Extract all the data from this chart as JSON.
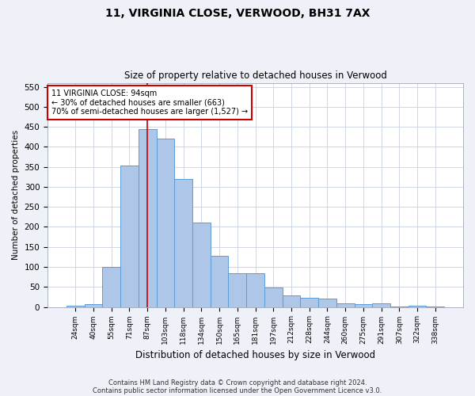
{
  "title1": "11, VIRGINIA CLOSE, VERWOOD, BH31 7AX",
  "title2": "Size of property relative to detached houses in Verwood",
  "xlabel": "Distribution of detached houses by size in Verwood",
  "ylabel": "Number of detached properties",
  "categories": [
    "24sqm",
    "40sqm",
    "55sqm",
    "71sqm",
    "87sqm",
    "103sqm",
    "118sqm",
    "134sqm",
    "150sqm",
    "165sqm",
    "181sqm",
    "197sqm",
    "212sqm",
    "228sqm",
    "244sqm",
    "260sqm",
    "275sqm",
    "291sqm",
    "307sqm",
    "322sqm",
    "338sqm"
  ],
  "values": [
    3,
    8,
    101,
    353,
    444,
    421,
    320,
    210,
    128,
    84,
    84,
    48,
    28,
    22,
    20,
    10,
    7,
    10,
    2,
    4,
    1
  ],
  "bar_color": "#aec6e8",
  "bar_edge_color": "#5b9bd5",
  "vline_x": 4,
  "vline_color": "#cc0000",
  "annotation_line1": "11 VIRGINIA CLOSE: 94sqm",
  "annotation_line2": "← 30% of detached houses are smaller (663)",
  "annotation_line3": "70% of semi-detached houses are larger (1,527) →",
  "annotation_box_color": "#ffffff",
  "annotation_border_color": "#cc0000",
  "ylim": [
    0,
    560
  ],
  "yticks": [
    0,
    50,
    100,
    150,
    200,
    250,
    300,
    350,
    400,
    450,
    500,
    550
  ],
  "footer1": "Contains HM Land Registry data © Crown copyright and database right 2024.",
  "footer2": "Contains public sector information licensed under the Open Government Licence v3.0.",
  "bg_color": "#eef2f8",
  "plot_bg_color": "#ffffff",
  "grid_color": "#c8d0e0"
}
